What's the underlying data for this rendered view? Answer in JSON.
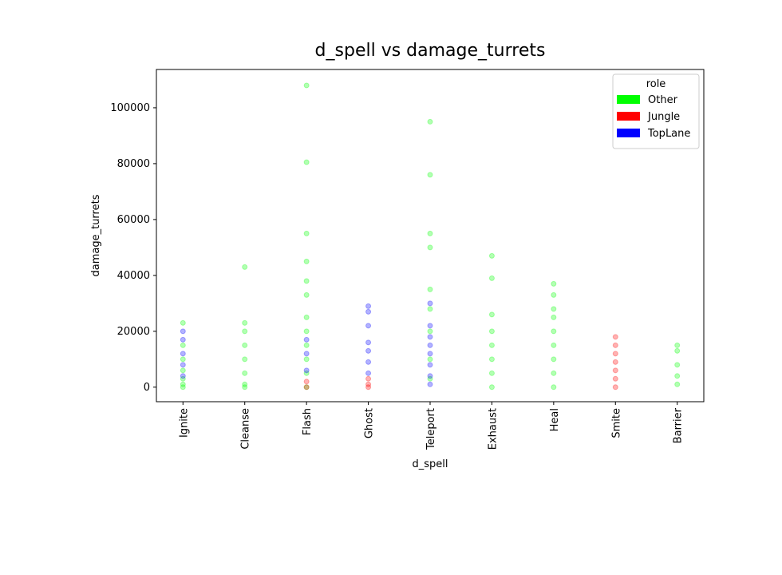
{
  "chart_data": {
    "type": "scatter",
    "title": "d_spell vs damage_turrets",
    "x_label": "d_spell",
    "y_label": "damage_turrets",
    "categories": [
      "Ignite",
      "Cleanse",
      "Flash",
      "Ghost",
      "Teleport",
      "Exhaust",
      "Heal",
      "Smite",
      "Barrier"
    ],
    "ylim": [
      -5200,
      113700
    ],
    "yticks": [
      0,
      20000,
      40000,
      60000,
      80000,
      100000
    ],
    "legend_title": "role",
    "legend_loc": "upper right",
    "series": [
      {
        "name": "Other",
        "color": "#00ff00",
        "x": [
          "Ignite",
          "Ignite",
          "Ignite",
          "Ignite",
          "Ignite",
          "Ignite",
          "Ignite",
          "Cleanse",
          "Cleanse",
          "Cleanse",
          "Cleanse",
          "Cleanse",
          "Cleanse",
          "Cleanse",
          "Cleanse",
          "Flash",
          "Flash",
          "Flash",
          "Flash",
          "Flash",
          "Flash",
          "Flash",
          "Flash",
          "Flash",
          "Flash",
          "Flash",
          "Flash",
          "Teleport",
          "Teleport",
          "Teleport",
          "Teleport",
          "Teleport",
          "Teleport",
          "Teleport",
          "Teleport",
          "Teleport",
          "Exhaust",
          "Exhaust",
          "Exhaust",
          "Exhaust",
          "Exhaust",
          "Exhaust",
          "Exhaust",
          "Exhaust",
          "Heal",
          "Heal",
          "Heal",
          "Heal",
          "Heal",
          "Heal",
          "Heal",
          "Heal",
          "Heal",
          "Barrier",
          "Barrier",
          "Barrier",
          "Barrier",
          "Barrier"
        ],
        "values": [
          23000,
          15000,
          10000,
          6000,
          3000,
          1000,
          0,
          43000,
          23000,
          20000,
          15000,
          10000,
          5000,
          1000,
          0,
          108000,
          80500,
          55000,
          45000,
          38000,
          33000,
          25000,
          20000,
          15000,
          10000,
          5000,
          0,
          95000,
          76000,
          55000,
          50000,
          35000,
          28000,
          20000,
          10000,
          3000,
          47000,
          39000,
          26000,
          20000,
          15000,
          10000,
          5000,
          0,
          37000,
          33000,
          28000,
          25000,
          20000,
          15000,
          10000,
          5000,
          0,
          15000,
          13000,
          8000,
          4000,
          1000
        ]
      },
      {
        "name": "Jungle",
        "color": "#ff0000",
        "x": [
          "Smite",
          "Smite",
          "Smite",
          "Smite",
          "Smite",
          "Smite",
          "Smite",
          "Ghost",
          "Ghost",
          "Ghost",
          "Flash",
          "Flash"
        ],
        "values": [
          18000,
          15000,
          12000,
          9000,
          6000,
          3000,
          0,
          3000,
          1000,
          0,
          2000,
          0
        ]
      },
      {
        "name": "TopLane",
        "color": "#0000ff",
        "x": [
          "Ignite",
          "Ignite",
          "Ignite",
          "Ignite",
          "Ignite",
          "Flash",
          "Flash",
          "Flash",
          "Ghost",
          "Ghost",
          "Ghost",
          "Ghost",
          "Ghost",
          "Ghost",
          "Ghost",
          "Teleport",
          "Teleport",
          "Teleport",
          "Teleport",
          "Teleport",
          "Teleport",
          "Teleport",
          "Teleport"
        ],
        "values": [
          20000,
          17000,
          12000,
          8000,
          4000,
          17000,
          12000,
          6000,
          29000,
          27000,
          22000,
          16000,
          13000,
          9000,
          5000,
          30000,
          22000,
          18000,
          15000,
          12000,
          8000,
          4000,
          1000
        ]
      }
    ]
  }
}
